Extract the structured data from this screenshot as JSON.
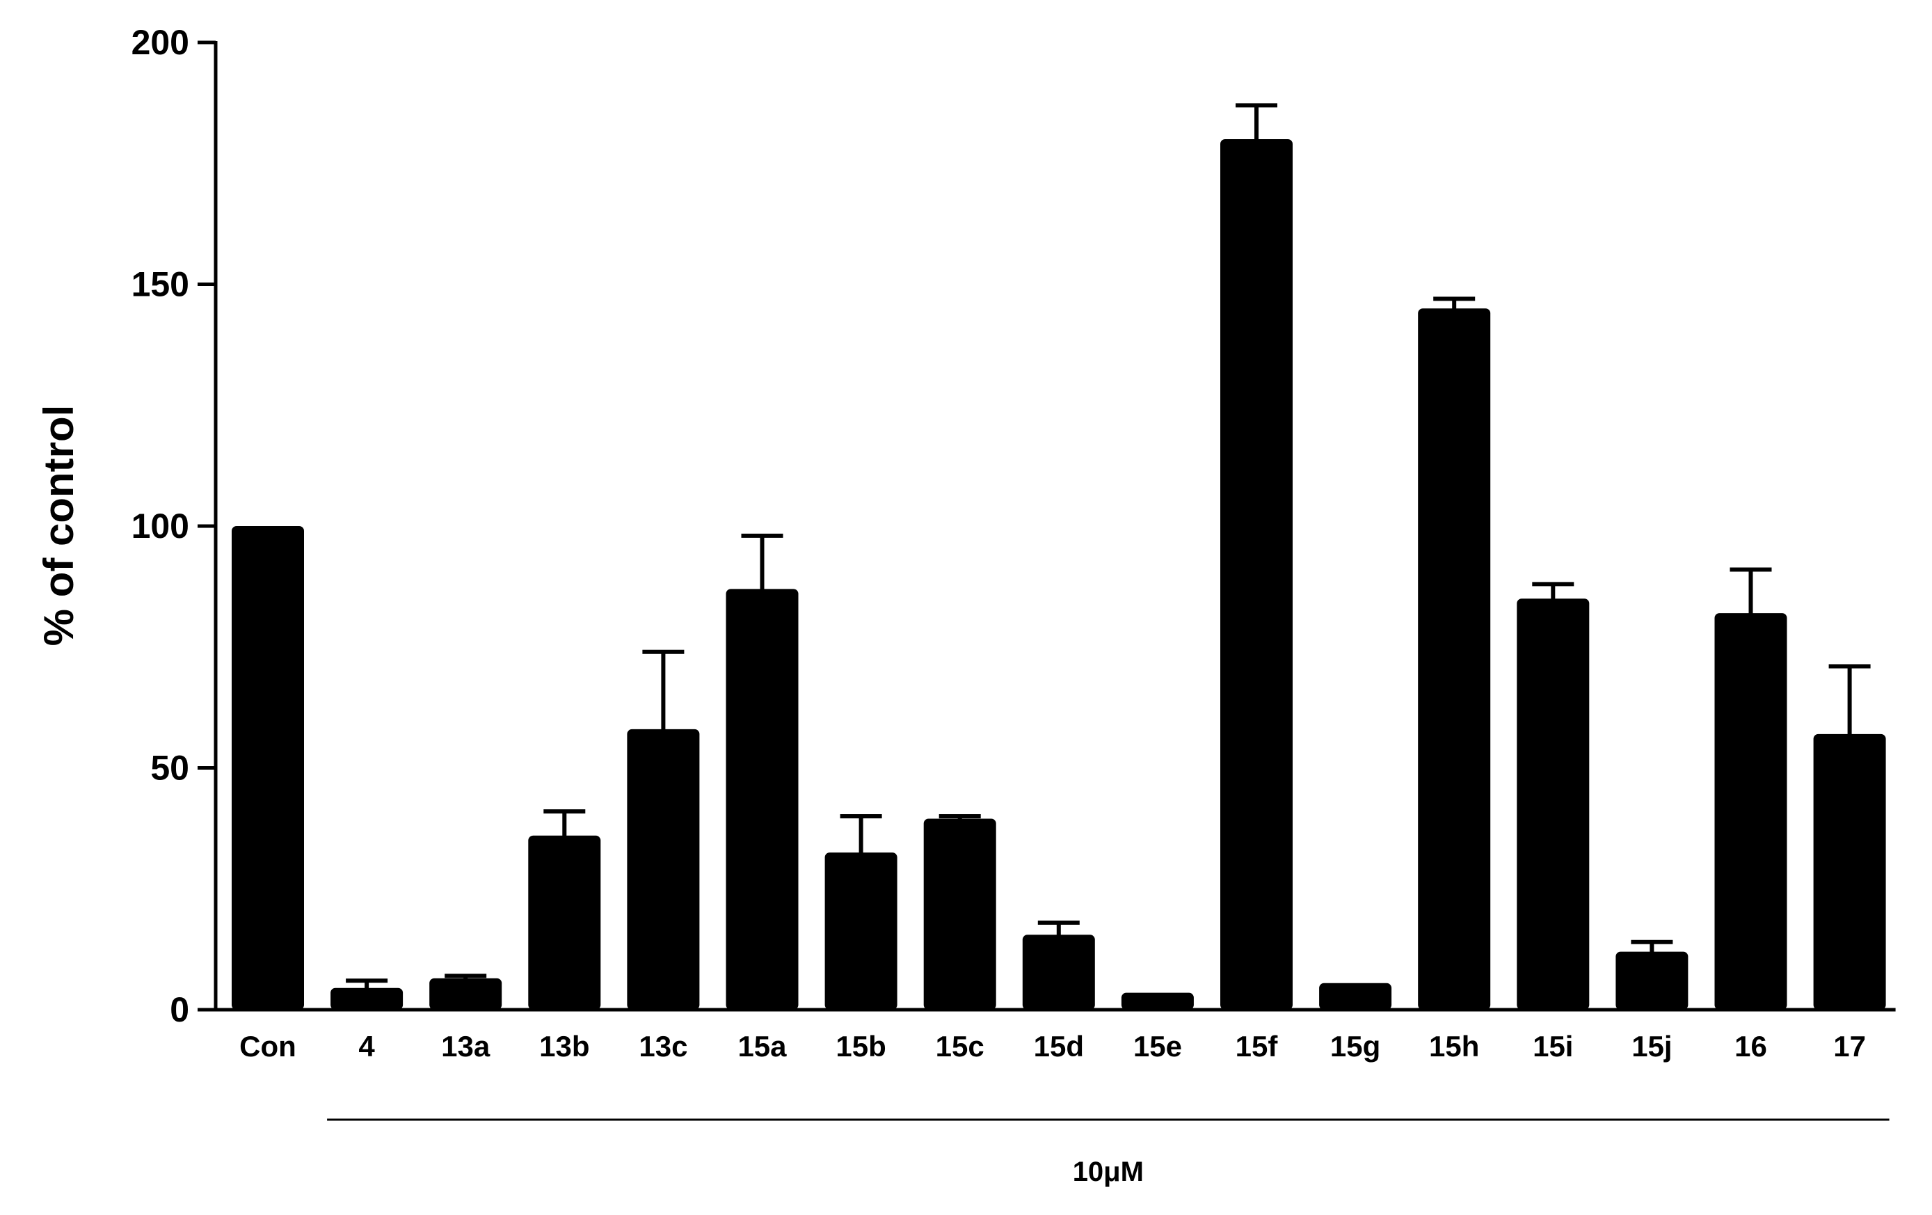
{
  "chart_data": {
    "type": "bar",
    "title": "",
    "xlabel": "",
    "ylabel": "% of control",
    "ylim": [
      0,
      200
    ],
    "yticks": [
      0,
      50,
      100,
      150,
      200
    ],
    "grid": false,
    "legend": "none",
    "bar_color": "#000000",
    "group_label": "10μM",
    "group_span": [
      "4",
      "17"
    ],
    "categories": [
      "Con",
      "4",
      "13a",
      "13b",
      "13c",
      "15a",
      "15b",
      "15c",
      "15d",
      "15e",
      "15f",
      "15g",
      "15h",
      "15i",
      "15j",
      "16",
      "17"
    ],
    "values": [
      100,
      4.5,
      6.5,
      36,
      58,
      87,
      32.5,
      39.5,
      15.5,
      3.5,
      180,
      5.5,
      145,
      85,
      12,
      82,
      57
    ],
    "error_upper": [
      null,
      6,
      7,
      41,
      74,
      98,
      40,
      40,
      18,
      null,
      187,
      null,
      147,
      88,
      14,
      91,
      71
    ]
  }
}
